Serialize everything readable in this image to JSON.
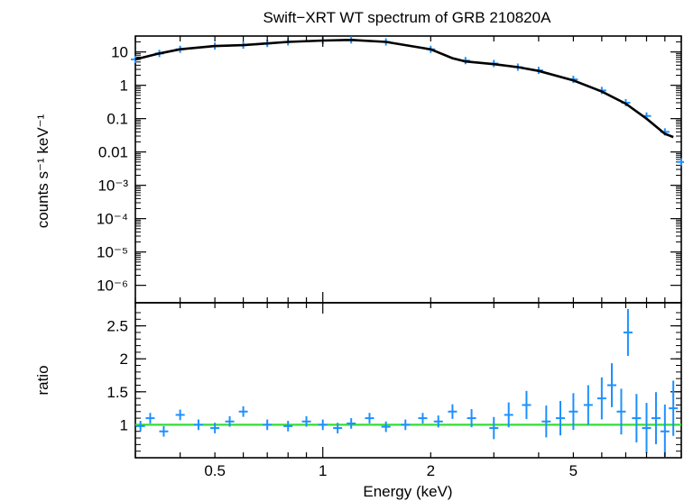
{
  "chart_data": [
    {
      "type": "scatter",
      "panel": "spectrum",
      "title": "Swift−XRT WT spectrum of GRB 210820A",
      "ylabel": "counts s⁻¹ keV⁻¹",
      "xscale": "log",
      "yscale": "log",
      "xlim": [
        0.3,
        10
      ],
      "ylim": [
        3e-07,
        30
      ],
      "y_tick_labels": [
        "10",
        "1",
        "0.1",
        "0.01",
        "10⁻³",
        "10⁻⁴",
        "10⁻⁵",
        "10⁻⁶"
      ],
      "y_tick_values": [
        10,
        1,
        0.1,
        0.01,
        0.001,
        0.0001,
        1e-05,
        1e-06
      ],
      "colors": {
        "data": "#1e90ff",
        "model": "#000000"
      },
      "series": [
        {
          "style": "data-with-errors",
          "x": [
            0.3,
            0.35,
            0.4,
            0.5,
            0.6,
            0.7,
            0.8,
            1.0,
            1.2,
            1.5,
            2.0,
            2.5,
            3.0,
            3.5,
            4.0,
            5.0,
            6.0,
            7.0,
            8.0,
            9.0,
            10.0
          ],
          "y": [
            6,
            9,
            12,
            15,
            16,
            18,
            20,
            22,
            23,
            20,
            12,
            5.5,
            4.5,
            3.5,
            2.8,
            1.5,
            0.7,
            0.3,
            0.12,
            0.04,
            0.005
          ]
        },
        {
          "style": "model",
          "x": [
            0.3,
            0.35,
            0.4,
            0.5,
            0.6,
            0.7,
            0.8,
            1.0,
            1.2,
            1.5,
            2.0,
            2.3,
            2.5,
            3.0,
            3.5,
            4.0,
            5.0,
            6.0,
            7.0,
            8.0,
            9.0,
            9.5
          ],
          "y": [
            6,
            9,
            12,
            15,
            16,
            18,
            20,
            22,
            23,
            20,
            12,
            6.5,
            5.2,
            4.3,
            3.5,
            2.7,
            1.4,
            0.65,
            0.28,
            0.1,
            0.035,
            0.028
          ]
        }
      ]
    },
    {
      "type": "scatter",
      "panel": "ratio",
      "xlabel": "Energy (keV)",
      "ylabel": "ratio",
      "xscale": "log",
      "xlim": [
        0.3,
        10
      ],
      "ylim": [
        0.5,
        2.85
      ],
      "x_tick_labels": [
        "0.5",
        "1",
        "2",
        "5"
      ],
      "x_tick_values": [
        0.5,
        1,
        2,
        5
      ],
      "y_tick_labels": [
        "2.5",
        "2",
        "1.5",
        "1"
      ],
      "y_tick_values": [
        2.5,
        2,
        1.5,
        1
      ],
      "colors": {
        "data": "#1e90ff",
        "reference": "#33dd33"
      },
      "reference_line": 1,
      "series": [
        {
          "style": "data-with-errors",
          "x": [
            0.31,
            0.33,
            0.36,
            0.4,
            0.45,
            0.5,
            0.55,
            0.6,
            0.7,
            0.8,
            0.9,
            1.0,
            1.1,
            1.2,
            1.35,
            1.5,
            1.7,
            1.9,
            2.1,
            2.3,
            2.6,
            3.0,
            3.3,
            3.7,
            4.2,
            4.6,
            5.0,
            5.5,
            6.0,
            6.4,
            6.8,
            7.1,
            7.5,
            8.0,
            8.5,
            9.0,
            9.5
          ],
          "y": [
            0.98,
            1.1,
            0.9,
            1.15,
            1.0,
            0.95,
            1.05,
            1.2,
            1.0,
            0.98,
            1.05,
            1.0,
            0.95,
            1.02,
            1.1,
            0.97,
            1.0,
            1.1,
            1.05,
            1.2,
            1.1,
            0.95,
            1.15,
            1.3,
            1.05,
            1.1,
            1.2,
            1.3,
            1.4,
            1.6,
            1.2,
            2.4,
            1.1,
            0.95,
            1.1,
            0.9,
            1.25
          ]
        }
      ]
    }
  ]
}
